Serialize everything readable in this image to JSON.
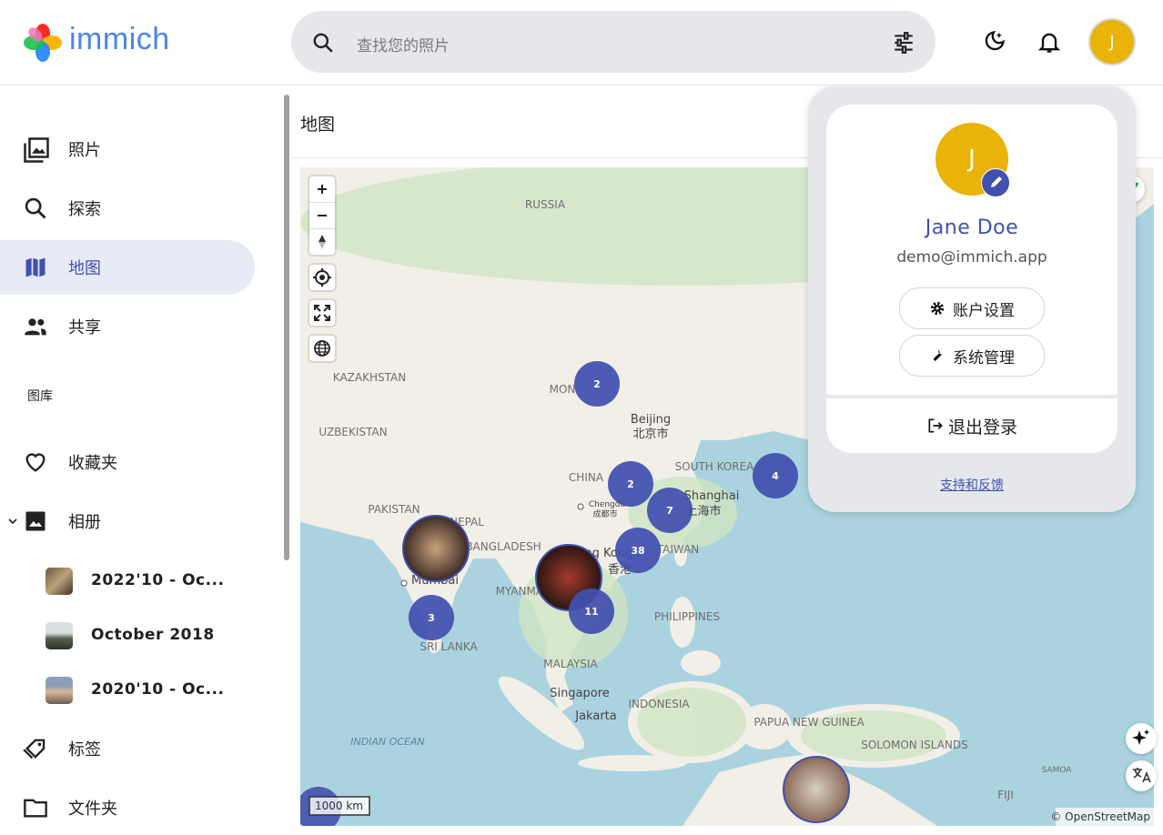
{
  "header": {
    "logo": "immich",
    "search_placeholder": "查找您的照片",
    "avatar": "J"
  },
  "sidebar": {
    "nav": [
      "照片",
      "探索",
      "地图",
      "共享"
    ],
    "section": "图库",
    "library": [
      "收藏夹",
      "相册"
    ],
    "albums": [
      "2022'10 - Oc...",
      "October 2018",
      "2020'10 - Oc..."
    ],
    "more": [
      "标签",
      "文件夹"
    ]
  },
  "main": {
    "title": "地图",
    "map": {
      "clusters": [
        "2",
        "2",
        "7",
        "38",
        "4",
        "3",
        "11"
      ],
      "labels": [
        "RUSSIA",
        "KAZAKHSTAN",
        "MON",
        "UZBEKISTAN",
        "Beijing",
        "北京市",
        "CHINA",
        "SOUTH KOREA",
        "Shanghai",
        "上海市",
        "Chengdu",
        "成都市",
        "PAKISTAN",
        "NEPAL",
        "BANGLADESH",
        "Mumbai",
        "Hong Kong",
        "香港",
        "TAIWAN",
        "MYANMAR",
        "PHILIPPINES",
        "SRI LANKA",
        "MALAYSIA",
        "Singapore",
        "Jakarta",
        "INDONESIA",
        "PAPUA NEW GUINEA",
        "SOLOMON ISLANDS",
        "SAMOA",
        "FIJI",
        "INDIAN OCEAN"
      ],
      "scale": "1000 km",
      "attribution": "© OpenStreetMap"
    }
  },
  "user_menu": {
    "avatar": "J",
    "name": "Jane Doe",
    "email": "demo@immich.app",
    "buttons": [
      "账户设置",
      "系统管理"
    ],
    "logout": "退出登录",
    "support": "支持和反馈"
  }
}
